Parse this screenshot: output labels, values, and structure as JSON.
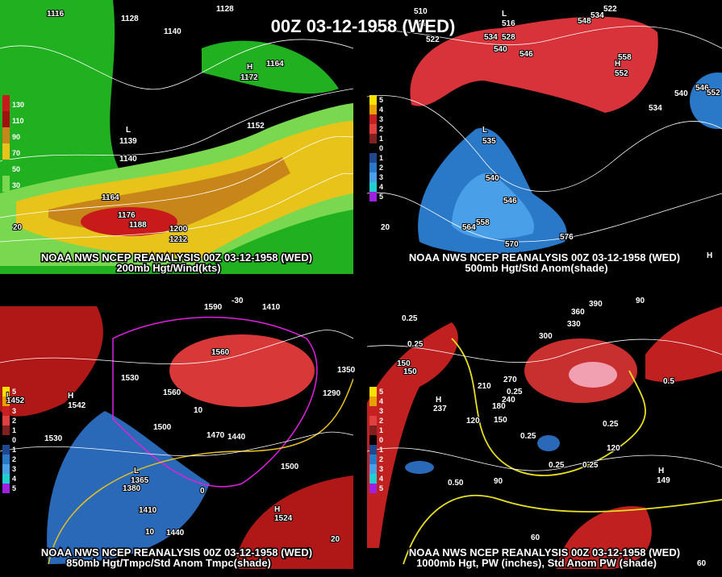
{
  "title": "00Z 03-12-1958 (WED)",
  "panels": [
    {
      "source": "NOAA NWS NCEP REANALYSIS 00Z 03-12-1958 (WED)",
      "caption": "200mb Hgt/Wind(kts)",
      "legend": [
        "130",
        "110",
        "90",
        "70",
        "50",
        "30"
      ],
      "labels": [
        "1116",
        "1128",
        "1128",
        "1140",
        "1164",
        "H",
        "1172",
        "1152",
        "L",
        "1139",
        "1140",
        "1164",
        "1176",
        "1188",
        "1200",
        "1212",
        "20"
      ]
    },
    {
      "source": "NOAA NWS NCEP REANALYSIS 00Z 03-12-1958 (WED)",
      "caption": "500mb Hgt/Std Anom(shade)",
      "legend": [
        "5",
        "4",
        "3",
        "2",
        "1",
        "0",
        "1",
        "2",
        "3",
        "4",
        "5"
      ],
      "labels": [
        "510",
        "522",
        "522",
        "L",
        "516",
        "534",
        "528",
        "540",
        "546",
        "522",
        "534",
        "548",
        "558",
        "H",
        "552",
        "546",
        "552",
        "540",
        "534",
        "L",
        "535",
        "540",
        "546",
        "558",
        "564",
        "570",
        "576",
        "20",
        "H"
      ]
    },
    {
      "source": "NOAA NWS NCEP REANALYSIS 00Z 03-12-1958 (WED)",
      "caption": "850mb Hgt/Tmpc/Std Anom Tmpc(shade)",
      "legend": [
        "5",
        "4",
        "3",
        "2",
        "1",
        "0",
        "1",
        "2",
        "3",
        "4",
        "5"
      ],
      "labels": [
        "1590",
        "-30",
        "1410",
        "1560",
        "1530",
        "1560",
        "1500",
        "1470",
        "1440",
        "1530",
        "L",
        "1452",
        "H",
        "1542",
        "1350",
        "1290",
        "L",
        "1365",
        "1380",
        "1410",
        "1440",
        "10",
        "1500",
        "H",
        "1524",
        "20",
        "10",
        "0"
      ]
    },
    {
      "source": "NOAA NWS NCEP REANALYSIS 00Z 03-12-1958 (WED)",
      "caption": "1000mb Hgt, PW (inches), Std Anom PW (shade)",
      "legend": [
        "5",
        "4",
        "3",
        "2",
        "1",
        "0",
        "1",
        "2",
        "3",
        "4",
        "5"
      ],
      "labels": [
        "390",
        "90",
        "360",
        "330",
        "300",
        "0.25",
        "0.25",
        "150",
        "150",
        "H",
        "237",
        "270",
        "0.25",
        "240",
        "210",
        "180",
        "150",
        "120",
        "0.25",
        "0.25",
        "0.25",
        "0.25",
        "120",
        "H",
        "149",
        "0.50",
        "90",
        "0.5",
        "60",
        "60"
      ]
    }
  ]
}
